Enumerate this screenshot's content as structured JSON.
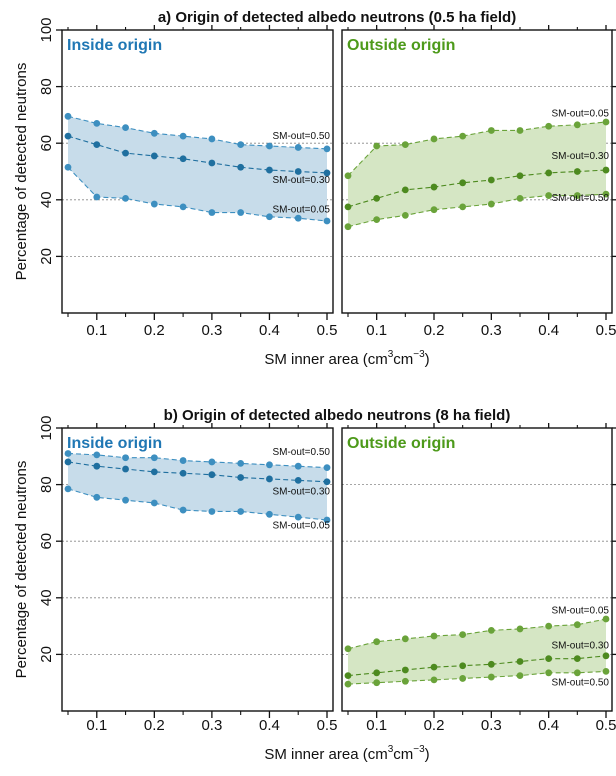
{
  "colors": {
    "inside_dark": "#1f6f9f",
    "inside_point": "#3d8fc0",
    "inside_fill": "#c7dcea",
    "outside_dark": "#4d8a1f",
    "outside_point": "#6aa33a",
    "outside_fill": "#d5e6c4",
    "inside_title": "#1f77b4",
    "outside_title": "#4d9a1a"
  },
  "chart_data": [
    {
      "type": "area",
      "title": "a) Origin of detected albedo neutrons (0.5 ha field)",
      "ylabel": "Percentage of detected neutrons",
      "xlabel": "SM inner area (cm³cm⁻³)",
      "xlabel_parts": {
        "main": "SM inner area (cm",
        "sup1": "3",
        "mid": "cm",
        "sup2": "−3",
        "end": ")"
      },
      "xlim": [
        0.05,
        0.5
      ],
      "ylim": [
        0,
        100
      ],
      "xticks": [
        0.1,
        0.2,
        0.3,
        0.4,
        0.5
      ],
      "xtick_labels": [
        "0.1",
        "0.2",
        "0.3",
        "0.4",
        "0.5"
      ],
      "yticks": [
        20,
        40,
        60,
        80,
        100
      ],
      "ytick_labels": [
        "20",
        "40",
        "60",
        "80",
        "100"
      ],
      "gridlines_y": [
        20,
        40,
        60,
        80
      ],
      "x": [
        0.05,
        0.1,
        0.15,
        0.2,
        0.25,
        0.3,
        0.35,
        0.4,
        0.45,
        0.5
      ],
      "panels": [
        {
          "name": "Inside origin",
          "color_key": "inside",
          "series": [
            {
              "name": "SM-out=0.50",
              "values": [
                69.5,
                67,
                65.5,
                63.5,
                62.5,
                61.5,
                59.5,
                59,
                58.5,
                58
              ]
            },
            {
              "name": "SM-out=0.30",
              "values": [
                62.5,
                59.5,
                56.5,
                55.5,
                54.5,
                53,
                51.5,
                50.5,
                50,
                49.5
              ]
            },
            {
              "name": "SM-out=0.05",
              "values": [
                51.5,
                41,
                40.5,
                38.5,
                37.5,
                35.5,
                35.5,
                34,
                33.5,
                32.5
              ]
            }
          ],
          "labels": [
            {
              "text": "SM-out=0.50",
              "value": 61.5
            },
            {
              "text": "SM-out=0.30",
              "value": 46
            },
            {
              "text": "SM-out=0.05",
              "value": 35.5
            }
          ]
        },
        {
          "name": "Outside origin",
          "color_key": "outside",
          "series": [
            {
              "name": "SM-out=0.05",
              "values": [
                48.5,
                59,
                59.5,
                61.5,
                62.5,
                64.5,
                64.5,
                66,
                66.5,
                67.5
              ]
            },
            {
              "name": "SM-out=0.30",
              "values": [
                37.5,
                40.5,
                43.5,
                44.5,
                46,
                47,
                48.5,
                49.5,
                50,
                50.5
              ]
            },
            {
              "name": "SM-out=0.50",
              "values": [
                30.5,
                33,
                34.5,
                36.5,
                37.5,
                38.5,
                40.5,
                41.5,
                41.5,
                42
              ]
            }
          ],
          "labels": [
            {
              "text": "SM-out=0.05",
              "value": 69.5
            },
            {
              "text": "SM-out=0.30",
              "value": 54.5
            },
            {
              "text": "SM-out=0.50",
              "value": 39.5
            }
          ]
        }
      ]
    },
    {
      "type": "area",
      "title": "b) Origin of detected albedo neutrons (8 ha field)",
      "ylabel": "Percentage of detected neutrons",
      "xlabel": "SM inner area (cm³cm⁻³)",
      "xlabel_parts": {
        "main": "SM inner area (cm",
        "sup1": "3",
        "mid": "cm",
        "sup2": "−3",
        "end": ")"
      },
      "xlim": [
        0.05,
        0.5
      ],
      "ylim": [
        0,
        100
      ],
      "xticks": [
        0.1,
        0.2,
        0.3,
        0.4,
        0.5
      ],
      "xtick_labels": [
        "0.1",
        "0.2",
        "0.3",
        "0.4",
        "0.5"
      ],
      "yticks": [
        20,
        40,
        60,
        80,
        100
      ],
      "ytick_labels": [
        "20",
        "40",
        "60",
        "80",
        "100"
      ],
      "gridlines_y": [
        20,
        40,
        60,
        80
      ],
      "x": [
        0.05,
        0.1,
        0.15,
        0.2,
        0.25,
        0.3,
        0.35,
        0.4,
        0.45,
        0.5
      ],
      "panels": [
        {
          "name": "Inside origin",
          "color_key": "inside",
          "series": [
            {
              "name": "SM-out=0.50",
              "values": [
                91,
                90.5,
                89.5,
                89.5,
                88.5,
                88,
                87.5,
                87,
                86.5,
                86
              ]
            },
            {
              "name": "SM-out=0.30",
              "values": [
                88,
                86.5,
                85.5,
                84.5,
                84,
                83.5,
                82.5,
                82,
                81.5,
                81
              ]
            },
            {
              "name": "SM-out=0.05",
              "values": [
                78.5,
                75.5,
                74.5,
                73.5,
                71,
                70.5,
                70.5,
                69.5,
                68.5,
                67.5
              ]
            }
          ],
          "labels": [
            {
              "text": "SM-out=0.50",
              "value": 90.5
            },
            {
              "text": "SM-out=0.30",
              "value": 76.5
            },
            {
              "text": "SM-out=0.05",
              "value": 64.5
            }
          ]
        },
        {
          "name": "Outside origin",
          "color_key": "outside",
          "series": [
            {
              "name": "SM-out=0.05",
              "values": [
                22,
                24.5,
                25.5,
                26.5,
                27,
                28.5,
                29,
                30,
                30.5,
                32.5
              ]
            },
            {
              "name": "SM-out=0.30",
              "values": [
                12.5,
                13.5,
                14.5,
                15.5,
                16,
                16.5,
                17.5,
                18.5,
                18.5,
                19.5
              ]
            },
            {
              "name": "SM-out=0.50",
              "values": [
                9.5,
                10,
                10.5,
                11,
                11.5,
                12,
                12.5,
                13.5,
                13.5,
                14
              ]
            }
          ],
          "labels": [
            {
              "text": "SM-out=0.05",
              "value": 34.5
            },
            {
              "text": "SM-out=0.30",
              "value": 22
            },
            {
              "text": "SM-out=0.50",
              "value": 9
            }
          ]
        }
      ]
    }
  ]
}
